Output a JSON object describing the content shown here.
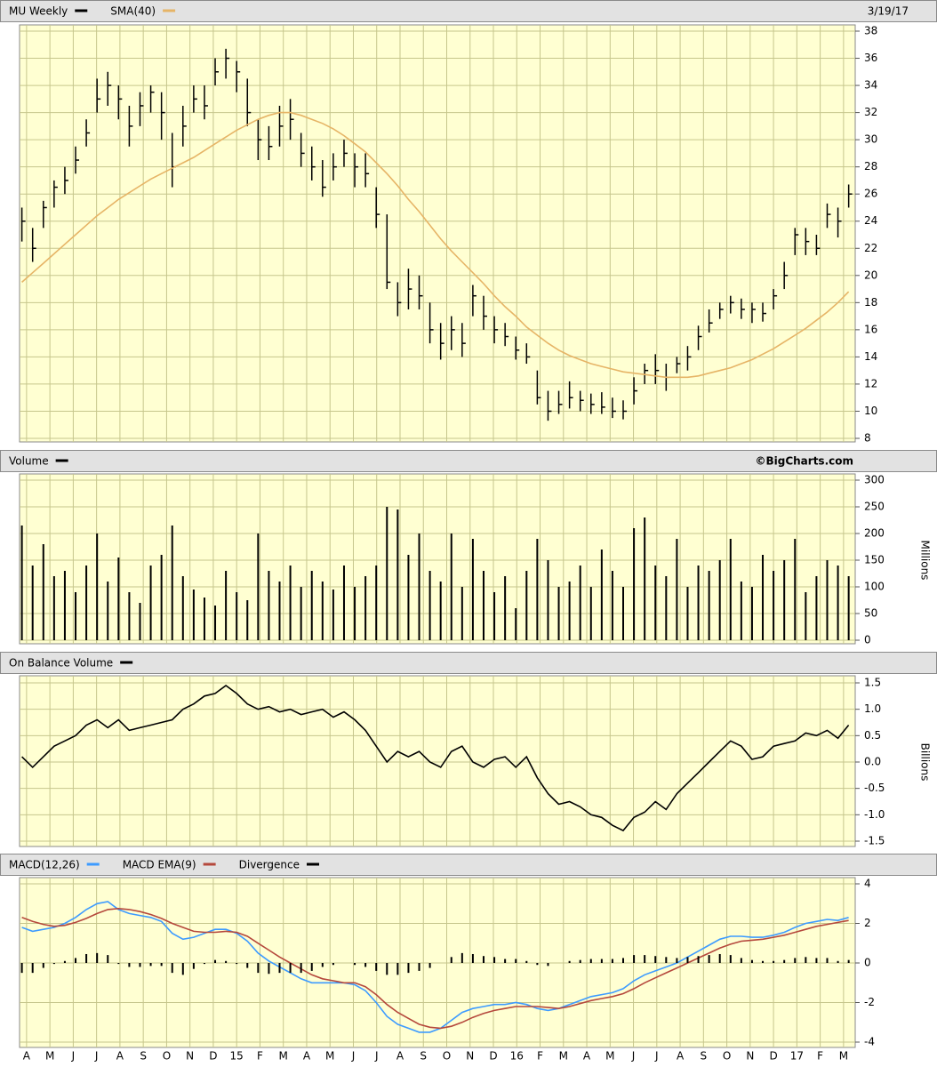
{
  "chart_data": {
    "type": "stock-study",
    "date": "3/19/17",
    "source": "©BigCharts.com",
    "x": [
      -0.2,
      0.26,
      0.72,
      1.18,
      1.64,
      2.1,
      2.56,
      3.02,
      3.48,
      3.94,
      4.4,
      4.86,
      5.32,
      5.78,
      6.24,
      6.7,
      7.16,
      7.62,
      8.08,
      8.54,
      9.0,
      9.46,
      9.92,
      10.38,
      10.84,
      11.3,
      11.76,
      12.22,
      12.68,
      13.14,
      13.6,
      14.06,
      14.52,
      14.98,
      15.44,
      15.9,
      16.36,
      16.82,
      17.28,
      17.74,
      18.2,
      18.66,
      19.12,
      19.58,
      20.04,
      20.5,
      20.96,
      21.42,
      21.88,
      22.34,
      22.8,
      23.26,
      23.72,
      24.18,
      24.64,
      25.1,
      25.56,
      26.02,
      26.48,
      26.94,
      27.4,
      27.86,
      28.32,
      28.78,
      29.24,
      29.7,
      30.16,
      30.62,
      31.08,
      31.54,
      32.0,
      32.46,
      32.92,
      33.38,
      33.84,
      34.3,
      34.76,
      35.22
    ],
    "xlim": [
      -0.3,
      35.5
    ],
    "xticks": [
      {
        "value": 0,
        "label": "A"
      },
      {
        "value": 1,
        "label": "M"
      },
      {
        "value": 2,
        "label": "J"
      },
      {
        "value": 3,
        "label": "J"
      },
      {
        "value": 4,
        "label": "A"
      },
      {
        "value": 5,
        "label": "S"
      },
      {
        "value": 6,
        "label": "O"
      },
      {
        "value": 7,
        "label": "N"
      },
      {
        "value": 8,
        "label": "D"
      },
      {
        "value": 9,
        "label": "15"
      },
      {
        "value": 10,
        "label": "F"
      },
      {
        "value": 11,
        "label": "M"
      },
      {
        "value": 12,
        "label": "A"
      },
      {
        "value": 13,
        "label": "M"
      },
      {
        "value": 14,
        "label": "J"
      },
      {
        "value": 15,
        "label": "J"
      },
      {
        "value": 16,
        "label": "A"
      },
      {
        "value": 17,
        "label": "S"
      },
      {
        "value": 18,
        "label": "O"
      },
      {
        "value": 19,
        "label": "N"
      },
      {
        "value": 20,
        "label": "D"
      },
      {
        "value": 21,
        "label": "16"
      },
      {
        "value": 22,
        "label": "F"
      },
      {
        "value": 23,
        "label": "M"
      },
      {
        "value": 24,
        "label": "A"
      },
      {
        "value": 25,
        "label": "M"
      },
      {
        "value": 26,
        "label": "J"
      },
      {
        "value": 27,
        "label": "J"
      },
      {
        "value": 28,
        "label": "A"
      },
      {
        "value": 29,
        "label": "S"
      },
      {
        "value": 30,
        "label": "O"
      },
      {
        "value": 31,
        "label": "N"
      },
      {
        "value": 32,
        "label": "D"
      },
      {
        "value": 33,
        "label": "17"
      },
      {
        "value": 34,
        "label": "F"
      },
      {
        "value": 35,
        "label": "M"
      }
    ],
    "panels": [
      {
        "ylim": [
          8,
          38
        ],
        "yticks": [
          8,
          10,
          12,
          14,
          16,
          18,
          20,
          22,
          24,
          26,
          28,
          30,
          32,
          34,
          36,
          38
        ],
        "series": [
          {
            "name": "MU Weekly",
            "type": "ohlc",
            "color": "#000000",
            "high": [
              25,
              23.5,
              25.5,
              27,
              28,
              29.5,
              31.5,
              34.5,
              35,
              34,
              32.5,
              33.5,
              34,
              33.5,
              30.5,
              32.5,
              34,
              34,
              36,
              36.7,
              35.8,
              34.5,
              31.5,
              31,
              32.5,
              33,
              30.5,
              29.5,
              28.5,
              29,
              30,
              29,
              29,
              26.5,
              24.5,
              19.5,
              20.5,
              20,
              18,
              16.5,
              17,
              16.5,
              19.3,
              18.5,
              17,
              16.5,
              15.5,
              15,
              13,
              11.5,
              11.5,
              12.2,
              11.5,
              11.3,
              11.4,
              11,
              10.8,
              12.5,
              13.5,
              14.2,
              13.5,
              14,
              14.8,
              16.3,
              17.5,
              18,
              18.5,
              18.3,
              18,
              18,
              19,
              21,
              23.5,
              23.5,
              23,
              25.3,
              25,
              26.7
            ],
            "low": [
              22.5,
              21,
              23.5,
              25,
              26,
              27.5,
              29.5,
              32,
              32.5,
              31.5,
              29.5,
              31,
              32,
              30,
              26.5,
              29.5,
              32,
              31.5,
              34,
              34.5,
              33.5,
              31,
              28.5,
              28.5,
              29.5,
              30,
              28,
              27,
              25.8,
              27,
              28,
              26.5,
              26.5,
              23.5,
              19,
              17,
              17.5,
              17.5,
              15,
              13.8,
              14.5,
              14,
              17,
              16,
              15,
              14.8,
              13.8,
              13.5,
              10.5,
              9.3,
              9.8,
              10.2,
              10,
              9.8,
              9.8,
              9.5,
              9.4,
              10.5,
              12,
              12,
              11.5,
              12.8,
              13,
              14.5,
              15.8,
              16.8,
              17.2,
              16.8,
              16.5,
              16.6,
              17.5,
              19,
              21.5,
              21.5,
              21.5,
              23.5,
              22.8,
              25
            ],
            "close": [
              24,
              22,
              25,
              26.5,
              27,
              28.5,
              30.5,
              33,
              34,
              33,
              31,
              32.5,
              33.5,
              32,
              28,
              31,
              33,
              32.5,
              35,
              36,
              35,
              32,
              30,
              29.5,
              31,
              31.5,
              29,
              28,
              26.5,
              28,
              29,
              28,
              27.5,
              24.5,
              19.5,
              18,
              19,
              18.5,
              16,
              15,
              16,
              15,
              18.5,
              17,
              16,
              15.5,
              14.5,
              14,
              11,
              10,
              10.5,
              11,
              10.8,
              10.5,
              10.3,
              10,
              10,
              11.5,
              13,
              13,
              12.5,
              13.5,
              14,
              15.5,
              16.5,
              17.5,
              18,
              17.5,
              17.5,
              17.2,
              18.5,
              20,
              23,
              22.5,
              22,
              24.5,
              24,
              26
            ]
          },
          {
            "name": "SMA(40)",
            "type": "line",
            "color": "#e6b466",
            "values": [
              19.5,
              20.2,
              20.9,
              21.6,
              22.3,
              23,
              23.7,
              24.4,
              25,
              25.6,
              26.1,
              26.6,
              27.1,
              27.5,
              27.9,
              28.3,
              28.7,
              29.2,
              29.7,
              30.2,
              30.7,
              31.1,
              31.5,
              31.8,
              32,
              32,
              31.8,
              31.5,
              31.2,
              30.8,
              30.3,
              29.7,
              29.1,
              28.3,
              27.5,
              26.6,
              25.6,
              24.7,
              23.7,
              22.7,
              21.8,
              21,
              20.2,
              19.4,
              18.5,
              17.7,
              17,
              16.2,
              15.6,
              15,
              14.5,
              14.1,
              13.8,
              13.5,
              13.3,
              13.1,
              12.9,
              12.8,
              12.7,
              12.6,
              12.5,
              12.5,
              12.5,
              12.6,
              12.8,
              13,
              13.2,
              13.5,
              13.8,
              14.2,
              14.6,
              15.1,
              15.6,
              16.1,
              16.7,
              17.3,
              18,
              18.8
            ]
          }
        ]
      },
      {
        "ylim": [
          0,
          300
        ],
        "yticks": [
          0,
          50,
          100,
          150,
          200,
          250,
          300
        ],
        "ylabel": "Millions",
        "series": [
          {
            "name": "Volume",
            "type": "bar",
            "color": "#000000",
            "values": [
              215,
              140,
              180,
              120,
              130,
              90,
              140,
              200,
              110,
              155,
              90,
              70,
              140,
              160,
              215,
              120,
              95,
              80,
              65,
              130,
              90,
              75,
              200,
              130,
              110,
              140,
              100,
              130,
              110,
              95,
              140,
              100,
              120,
              140,
              250,
              245,
              160,
              200,
              130,
              110,
              200,
              100,
              190,
              130,
              90,
              120,
              60,
              130,
              190,
              150,
              100,
              110,
              140,
              100,
              170,
              130,
              100,
              210,
              230,
              140,
              120,
              190,
              100,
              140,
              130,
              150,
              190,
              110,
              100,
              160,
              130,
              150,
              190,
              90,
              120,
              150,
              140,
              120
            ]
          }
        ]
      },
      {
        "ylim": [
          -1.5,
          1.5
        ],
        "yticks": [
          -1.5,
          {
            "value": -1,
            "label": "-1.0"
          },
          -0.5,
          {
            "value": 0,
            "label": "0.0"
          },
          0.5,
          {
            "value": 1,
            "label": "1.0"
          },
          1.5
        ],
        "ylabel": "Billions",
        "series": [
          {
            "name": "On Balance Volume",
            "type": "line",
            "color": "#000000",
            "values": [
              0.1,
              -0.1,
              0.1,
              0.3,
              0.4,
              0.5,
              0.7,
              0.8,
              0.65,
              0.8,
              0.6,
              0.65,
              0.7,
              0.75,
              0.8,
              1.0,
              1.1,
              1.25,
              1.3,
              1.45,
              1.3,
              1.1,
              1.0,
              1.05,
              0.95,
              1.0,
              0.9,
              0.95,
              1.0,
              0.85,
              0.95,
              0.8,
              0.6,
              0.3,
              0.0,
              0.2,
              0.1,
              0.2,
              0.0,
              -0.1,
              0.2,
              0.3,
              0.0,
              -0.1,
              0.05,
              0.1,
              -0.1,
              0.1,
              -0.3,
              -0.6,
              -0.8,
              -0.75,
              -0.85,
              -1.0,
              -1.05,
              -1.2,
              -1.3,
              -1.05,
              -0.95,
              -0.75,
              -0.9,
              -0.6,
              -0.4,
              -0.2,
              0.0,
              0.2,
              0.4,
              0.3,
              0.05,
              0.1,
              0.3,
              0.35,
              0.4,
              0.55,
              0.5,
              0.6,
              0.45,
              0.7
            ]
          }
        ]
      },
      {
        "ylim": [
          -4,
          4
        ],
        "yticks": [
          -4,
          -2,
          0,
          2,
          4
        ],
        "series": [
          {
            "name": "MACD(12,26)",
            "type": "line",
            "color": "#3d9bff",
            "values": [
              1.8,
              1.6,
              1.7,
              1.8,
              2.0,
              2.3,
              2.7,
              3.0,
              3.1,
              2.7,
              2.5,
              2.4,
              2.3,
              2.1,
              1.5,
              1.2,
              1.3,
              1.5,
              1.7,
              1.7,
              1.5,
              1.1,
              0.5,
              0.1,
              -0.2,
              -0.5,
              -0.8,
              -1.0,
              -1.0,
              -1.0,
              -1.0,
              -1.1,
              -1.4,
              -2.0,
              -2.7,
              -3.1,
              -3.3,
              -3.5,
              -3.5,
              -3.3,
              -2.9,
              -2.5,
              -2.3,
              -2.2,
              -2.1,
              -2.1,
              -2.0,
              -2.1,
              -2.3,
              -2.4,
              -2.3,
              -2.1,
              -1.9,
              -1.7,
              -1.6,
              -1.5,
              -1.3,
              -0.9,
              -0.6,
              -0.4,
              -0.2,
              0.0,
              0.3,
              0.6,
              0.9,
              1.2,
              1.35,
              1.35,
              1.3,
              1.3,
              1.4,
              1.55,
              1.8,
              2.0,
              2.1,
              2.2,
              2.15,
              2.3
            ]
          },
          {
            "name": "MACD EMA(9)",
            "type": "line",
            "color": "#b5483c",
            "values": [
              2.3,
              2.1,
              1.95,
              1.85,
              1.9,
              2.05,
              2.25,
              2.5,
              2.7,
              2.75,
              2.7,
              2.6,
              2.45,
              2.25,
              2.0,
              1.8,
              1.6,
              1.55,
              1.55,
              1.6,
              1.55,
              1.35,
              1.0,
              0.65,
              0.3,
              0.0,
              -0.3,
              -0.6,
              -0.8,
              -0.9,
              -1.0,
              -1.0,
              -1.2,
              -1.6,
              -2.1,
              -2.5,
              -2.8,
              -3.1,
              -3.25,
              -3.3,
              -3.2,
              -3.0,
              -2.75,
              -2.55,
              -2.4,
              -2.3,
              -2.2,
              -2.2,
              -2.2,
              -2.25,
              -2.3,
              -2.2,
              -2.05,
              -1.9,
              -1.8,
              -1.7,
              -1.55,
              -1.3,
              -1.0,
              -0.75,
              -0.5,
              -0.25,
              0.0,
              0.25,
              0.5,
              0.75,
              0.95,
              1.1,
              1.15,
              1.2,
              1.3,
              1.4,
              1.55,
              1.7,
              1.85,
              1.95,
              2.05,
              2.15
            ]
          },
          {
            "name": "Divergence",
            "type": "bar",
            "color": "#000000",
            "values": [
              -0.5,
              -0.5,
              -0.25,
              -0.05,
              0.1,
              0.25,
              0.45,
              0.5,
              0.4,
              -0.05,
              -0.2,
              -0.2,
              -0.15,
              -0.15,
              -0.5,
              -0.6,
              -0.3,
              -0.05,
              0.15,
              0.1,
              -0.05,
              -0.25,
              -0.5,
              -0.55,
              -0.5,
              -0.5,
              -0.5,
              -0.4,
              -0.2,
              -0.1,
              0,
              -0.1,
              -0.2,
              -0.4,
              -0.6,
              -0.6,
              -0.5,
              -0.4,
              -0.25,
              0,
              0.3,
              0.5,
              0.45,
              0.35,
              0.3,
              0.2,
              0.2,
              0.1,
              -0.1,
              -0.15,
              0,
              0.1,
              0.15,
              0.2,
              0.2,
              0.2,
              0.25,
              0.4,
              0.4,
              0.35,
              0.3,
              0.25,
              0.3,
              0.35,
              0.4,
              0.45,
              0.4,
              0.25,
              0.15,
              0.1,
              0.1,
              0.15,
              0.25,
              0.3,
              0.25,
              0.25,
              0.1,
              0.15
            ]
          }
        ]
      }
    ]
  }
}
